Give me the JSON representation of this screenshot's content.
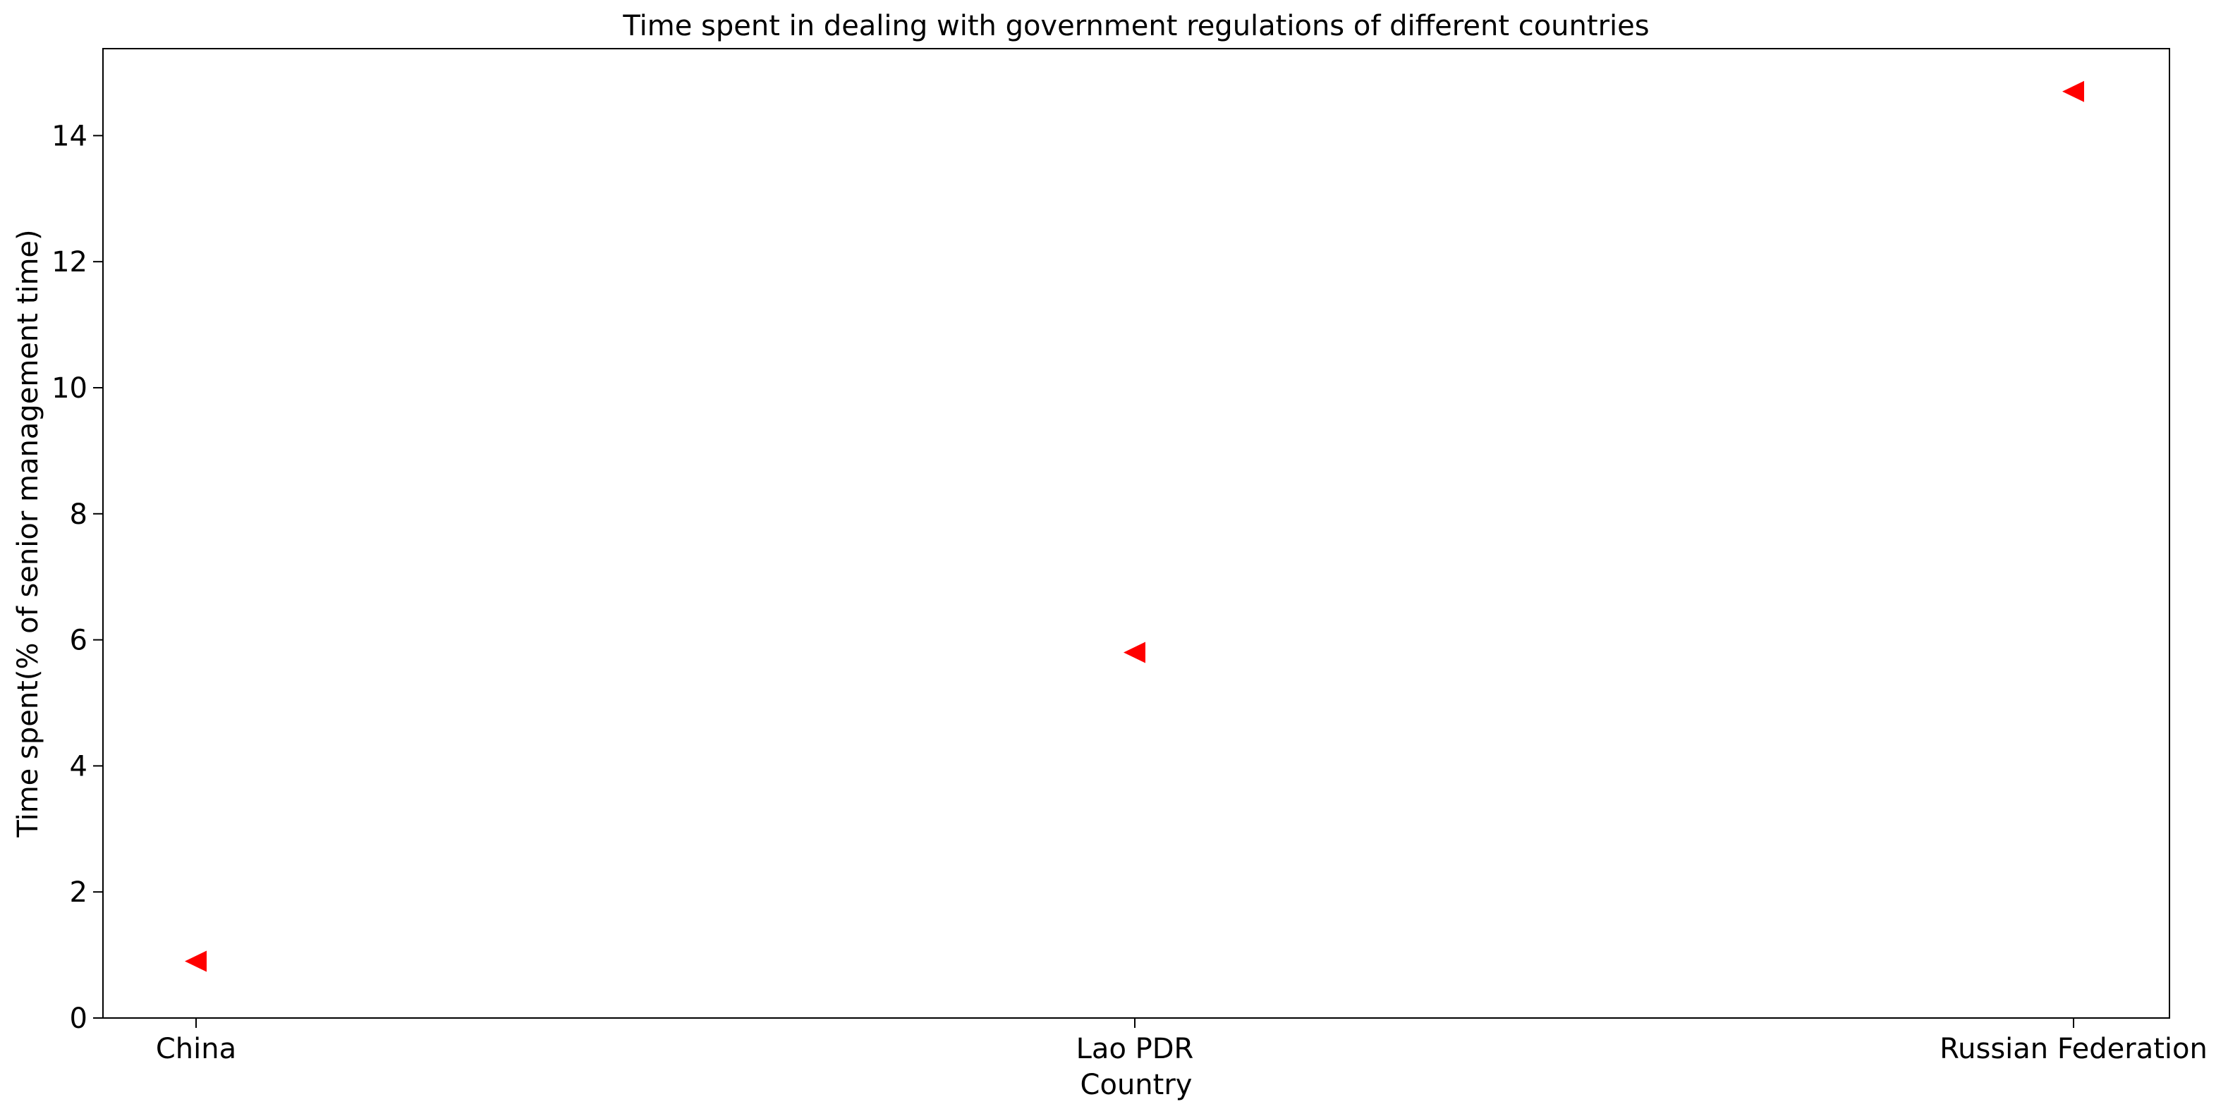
{
  "chart_data": {
    "type": "scatter",
    "title": "Time spent in dealing with government regulations of different countries",
    "xlabel": "Country",
    "ylabel": "Time spent(% of senior management time)",
    "categories": [
      "China",
      "Lao PDR",
      "Russian Federation"
    ],
    "series": [
      {
        "values": [
          0.9,
          5.8,
          14.7
        ],
        "color": "#ff0000",
        "marker": "triangle-left"
      }
    ],
    "yticks": [
      0,
      2,
      4,
      6,
      8,
      10,
      12,
      14
    ],
    "ylim": [
      0,
      15.38
    ],
    "grid": false,
    "legend": "none"
  }
}
